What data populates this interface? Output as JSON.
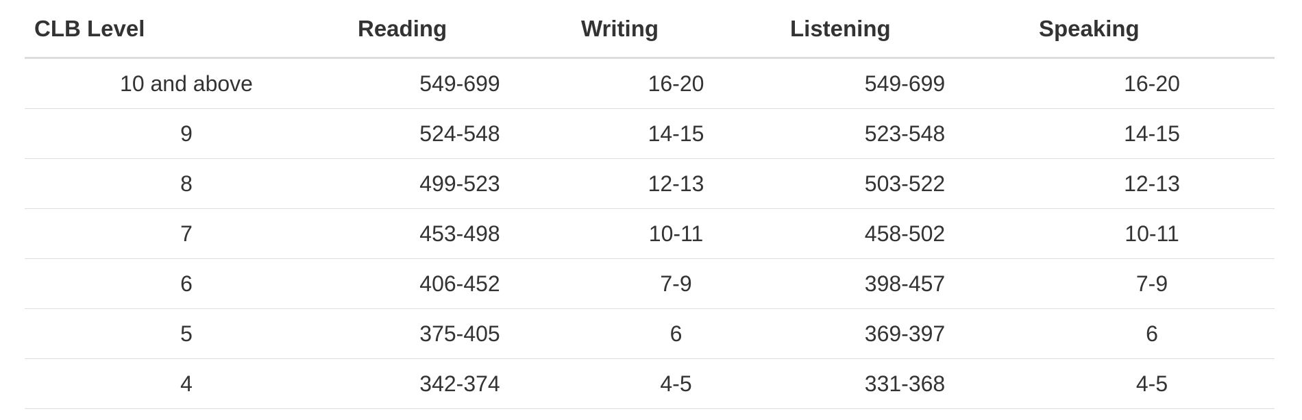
{
  "table": {
    "columns": [
      "CLB Level",
      "Reading",
      "Writing",
      "Listening",
      "Speaking"
    ],
    "rows": [
      [
        "10 and above",
        "549-699",
        "16-20",
        "549-699",
        "16-20"
      ],
      [
        "9",
        "524-548",
        "14-15",
        "523-548",
        "14-15"
      ],
      [
        "8",
        "499-523",
        "12-13",
        "503-522",
        "12-13"
      ],
      [
        "7",
        "453-498",
        "10-11",
        "458-502",
        "10-11"
      ],
      [
        "6",
        "406-452",
        "7-9",
        "398-457",
        "7-9"
      ],
      [
        "5",
        "375-405",
        "6",
        "369-397",
        "6"
      ],
      [
        "4",
        "342-374",
        "4-5",
        "331-368",
        "4-5"
      ]
    ]
  }
}
